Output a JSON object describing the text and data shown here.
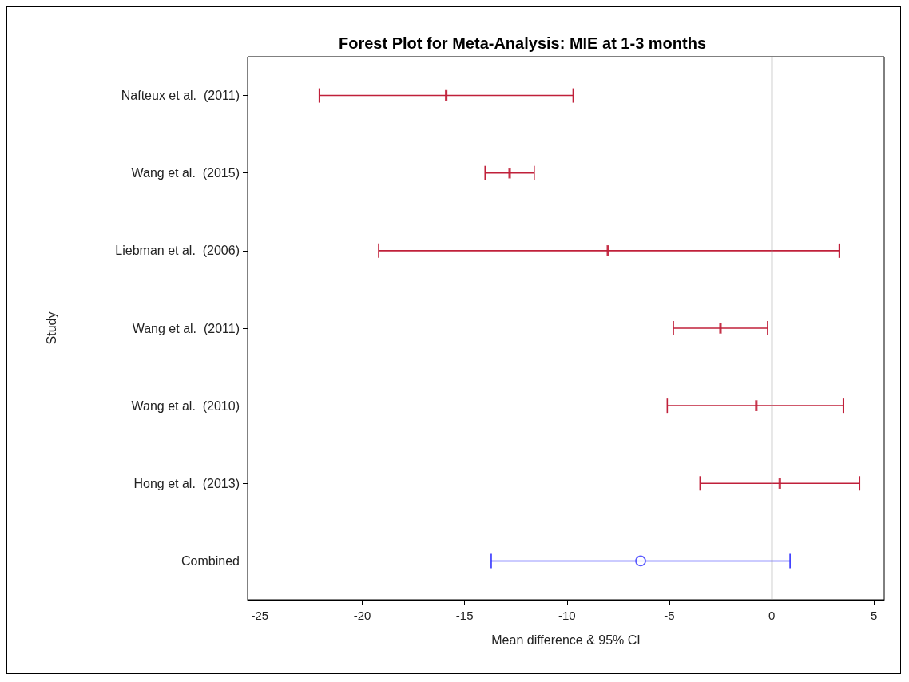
{
  "chart_data": {
    "type": "scatter",
    "title": "Forest Plot for Meta-Analysis: MIE at 1-3 months",
    "xlabel": "Mean difference & 95% CI",
    "ylabel": "Study",
    "orientation": "horizontal",
    "categories": [
      "Nafteux et al.  (2011)",
      "Wang et al.  (2015)",
      "Liebman et al.  (2006)",
      "Wang et al.  (2011)",
      "Wang et al.  (2010)",
      "Hong et al.  (2013)",
      "Combined"
    ],
    "series": [
      {
        "color": "#c0203a",
        "marker": "cross",
        "values": [
          -15.9,
          -12.8,
          -8.0,
          -2.5,
          -0.75,
          0.4,
          null
        ],
        "errors": [
          [
            -22.1,
            -9.7
          ],
          [
            -14.0,
            -11.6
          ],
          [
            -19.2,
            3.3
          ],
          [
            -4.8,
            -0.2
          ],
          [
            -5.1,
            3.5
          ],
          [
            -3.5,
            4.3
          ],
          null
        ]
      },
      {
        "color": "#3333ff",
        "marker": "circle",
        "values": [
          null,
          null,
          null,
          null,
          null,
          null,
          -6.4
        ],
        "errors": [
          null,
          null,
          null,
          null,
          null,
          null,
          [
            -13.7,
            0.9
          ]
        ]
      }
    ],
    "xlim": [
      -25.6,
      5.5
    ],
    "xticks": [
      -25,
      -20,
      -15,
      -10,
      -5,
      0,
      5
    ],
    "ref_lines": [
      {
        "axis": "x",
        "value": 0,
        "color": "#8c8c8c"
      }
    ],
    "grid": false,
    "legend": false
  }
}
